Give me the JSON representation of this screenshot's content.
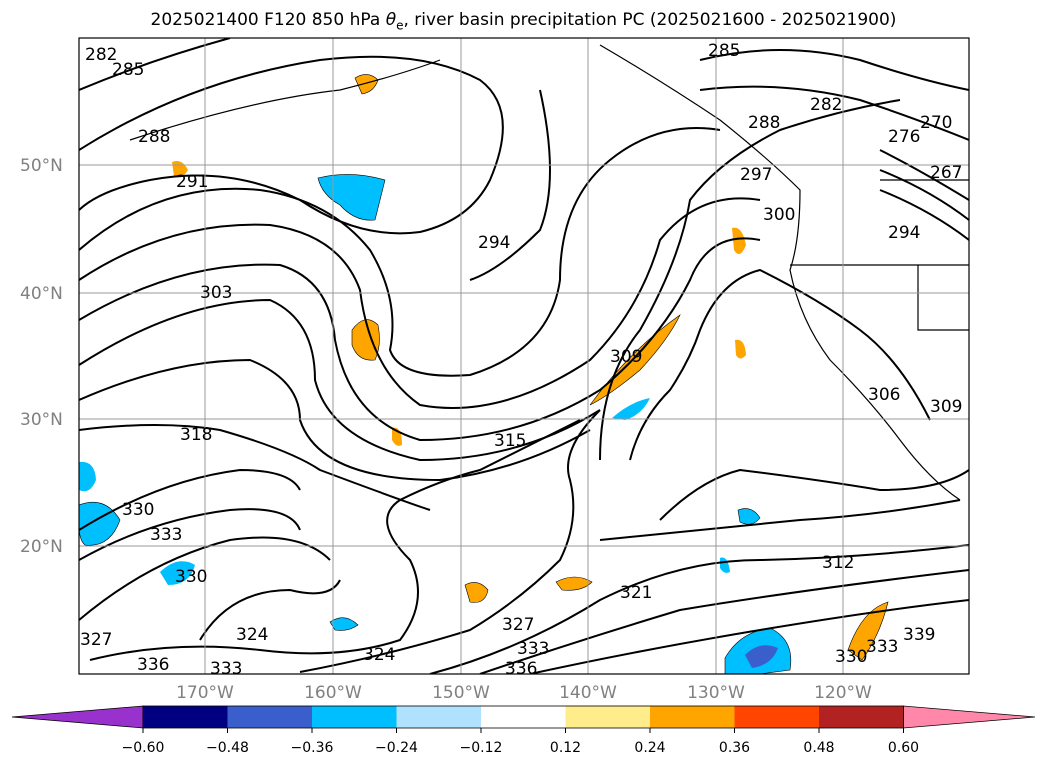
{
  "title": {
    "prefix": "2025021400 F120 850 hPa ",
    "var_symbol": "θ",
    "var_sub": "e",
    "suffix": ", river basin precipitation PC (2025021600 - 2025021900)"
  },
  "chart_data": {
    "type": "heatmap",
    "projection": "Lambert conformal (North Pacific)",
    "lat_labels": [
      "50°N",
      "40°N",
      "30°N",
      "20°N"
    ],
    "lon_labels": [
      "170°W",
      "160°W",
      "150°W",
      "140°W",
      "130°W",
      "120°W"
    ],
    "contour_variable": "850 hPa theta-e (K)",
    "contour_labels": [
      "282",
      "285",
      "288",
      "291",
      "294",
      "303",
      "318",
      "330",
      "333",
      "330",
      "327",
      "336",
      "333",
      "324",
      "324",
      "315",
      "309",
      "300",
      "297",
      "288",
      "285",
      "282",
      "306",
      "309",
      "312",
      "321",
      "327",
      "333",
      "336",
      "330",
      "333",
      "339",
      "276",
      "270",
      "267",
      "294"
    ],
    "colorbar": {
      "ticks": [
        "−0.60",
        "−0.48",
        "−0.36",
        "−0.24",
        "−0.12",
        "0.12",
        "0.24",
        "0.36",
        "0.48",
        "0.60"
      ],
      "colors": [
        "#9932cc",
        "#000080",
        "#3a5fcd",
        "#00bfff",
        "#b0e2ff",
        "#ffffff",
        "#ffec8b",
        "#ffa500",
        "#ff4500",
        "#b22222",
        "#ff88aa"
      ],
      "extend": "both"
    },
    "grid": true
  }
}
